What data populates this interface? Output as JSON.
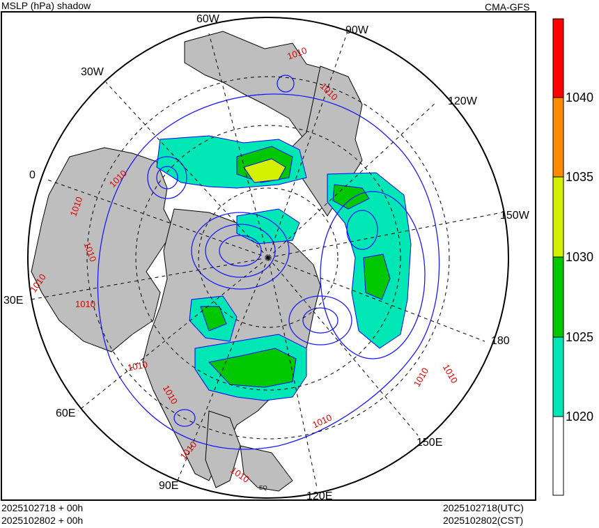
{
  "header": {
    "title": "MSLP (hPa) shadow",
    "model": "CMA-GFS"
  },
  "footer": {
    "init_left": "2025102718 + 00h",
    "valid_left": "2025102802 + 00h",
    "init_right": "2025102718(UTC)",
    "valid_right": "2025102802(CST)"
  },
  "map": {
    "projection": "north-polar-stereographic",
    "longitude_labels": [
      "60W",
      "90W",
      "30W",
      "120W",
      "0",
      "150W",
      "30E",
      "180",
      "60E",
      "150E",
      "90E",
      "120E"
    ],
    "equator_label": "EQ",
    "contour_label": "1010",
    "colors": {
      "land": "#bebebe",
      "ocean": "#ffffff",
      "isobar": "#1a1aff",
      "coast": "#000000",
      "label": "#e00000"
    }
  },
  "colorbar": {
    "levels": [
      "1020",
      "1025",
      "1030",
      "1035",
      "1040"
    ],
    "bins": [
      {
        "from": null,
        "to": 1020,
        "color": "#ffffff"
      },
      {
        "from": 1020,
        "to": 1025,
        "color": "#00e6b4"
      },
      {
        "from": 1025,
        "to": 1030,
        "color": "#00c800"
      },
      {
        "from": 1030,
        "to": 1035,
        "color": "#d2f000"
      },
      {
        "from": 1035,
        "to": 1040,
        "color": "#ff8c00"
      },
      {
        "from": 1040,
        "to": null,
        "color": "#ff0000"
      }
    ]
  }
}
